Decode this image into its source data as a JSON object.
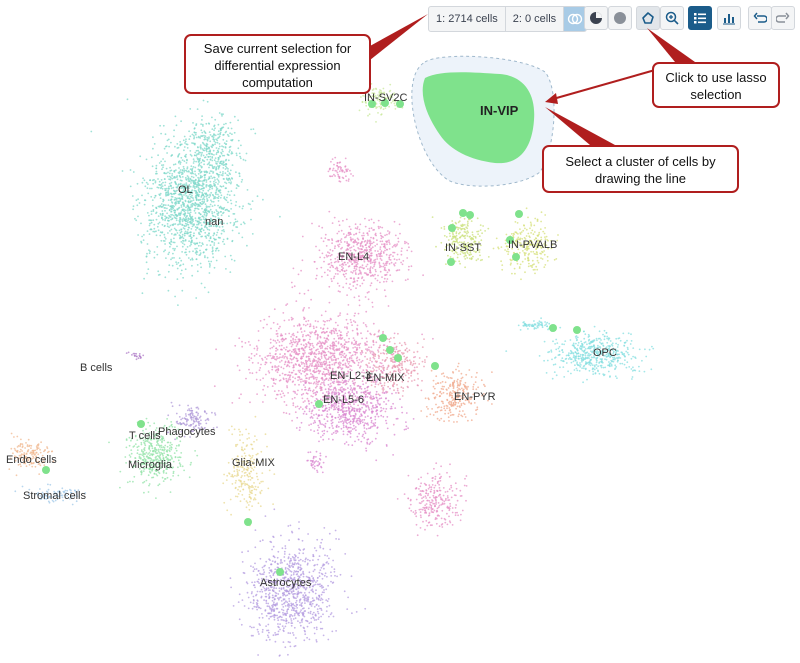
{
  "toolbar": {
    "selection1_label": "1: 2714 cells",
    "selection2_label": "2: 0 cells",
    "save_selection_icon": "venn-save-icon",
    "pie_icon": "pie-chart-icon",
    "dot_icon": "circle-icon",
    "lasso_icon": "lasso-icon",
    "zoom_icon": "zoom-in-icon",
    "legend_icon": "list-icon",
    "histogram_icon": "bar-chart-icon",
    "undo_icon": "undo-icon",
    "redo_icon": "redo-icon",
    "active_color": "#1b5c8a"
  },
  "callouts": {
    "save": [
      "Save current selection for",
      "differential expression",
      "computation"
    ],
    "lasso": [
      "Click to use lasso",
      "selection"
    ],
    "cluster": [
      "Select a cluster of cells by",
      "drawing the line"
    ],
    "border_color": "#b01e1e"
  },
  "clusters": [
    {
      "label": "IN-VIP",
      "color": "#7fe28c",
      "selected": true
    },
    {
      "label": "IN-SV2C",
      "color": "#c8e89a"
    },
    {
      "label": "OL",
      "color": "#7fd8c9"
    },
    {
      "label": "nan",
      "color": "#7fd8c9"
    },
    {
      "label": "EN-L4",
      "color": "#e590c6"
    },
    {
      "label": "IN-SST",
      "color": "#c9e07a"
    },
    {
      "label": "IN-PVALB",
      "color": "#d6e07a"
    },
    {
      "label": "B cells",
      "color": "#b07ec8"
    },
    {
      "label": "EN-L2-3",
      "color": "#e590c6"
    },
    {
      "label": "EN-MIX",
      "color": "#e89ab0"
    },
    {
      "label": "EN-L5-6",
      "color": "#d987d0"
    },
    {
      "label": "EN-PYR",
      "color": "#f0a98e"
    },
    {
      "label": "OPC",
      "color": "#86dfe0"
    },
    {
      "label": "T cells",
      "color": "#90e0a0"
    },
    {
      "label": "Phagocytes",
      "color": "#b09ad8"
    },
    {
      "label": "Microglia",
      "color": "#93e3a8"
    },
    {
      "label": "Glia-MIX",
      "color": "#e8d890"
    },
    {
      "label": "Endo cells",
      "color": "#f0b890"
    },
    {
      "label": "Stromal cells",
      "color": "#a0c8e8"
    },
    {
      "label": "Astrocytes",
      "color": "#b49ce0"
    }
  ]
}
